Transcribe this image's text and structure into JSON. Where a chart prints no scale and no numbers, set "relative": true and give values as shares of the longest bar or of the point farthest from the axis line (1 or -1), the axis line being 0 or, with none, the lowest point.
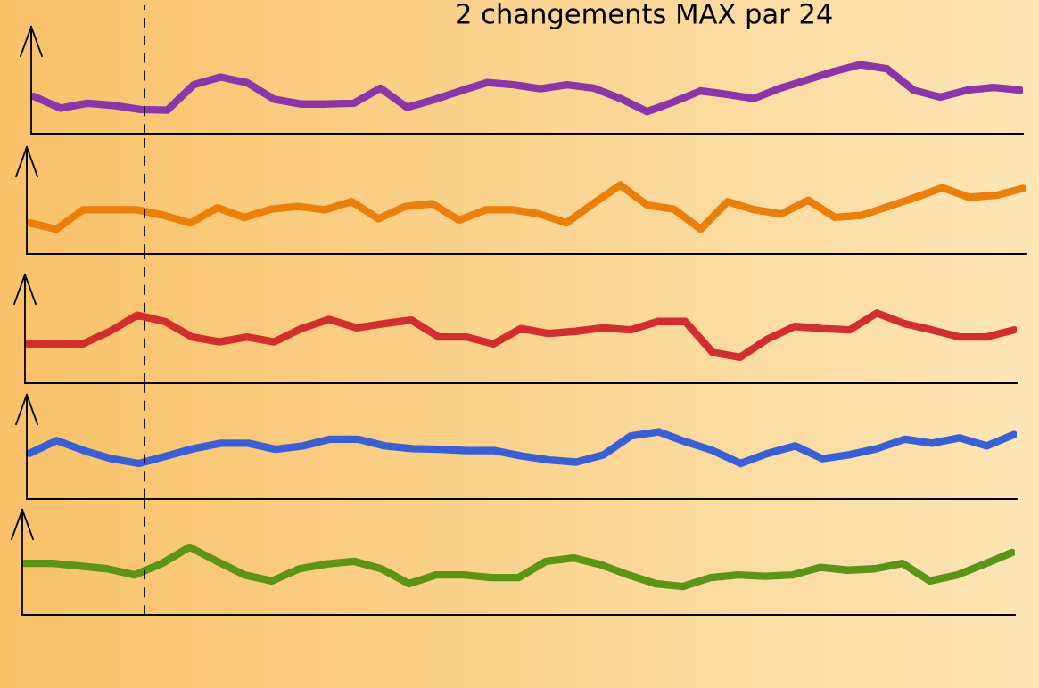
{
  "chart_data": [
    {
      "type": "line",
      "title": "2 changements MAX par 24",
      "relative": true,
      "grid": false,
      "marker": "none",
      "line_style": "solid",
      "categories": [
        null,
        null,
        null,
        null,
        null,
        null,
        null,
        null,
        null,
        null,
        null,
        null,
        null,
        null,
        null,
        null,
        null,
        null,
        null,
        null,
        null,
        null,
        null,
        null,
        null,
        null,
        null,
        null,
        null,
        null,
        null,
        null,
        null,
        null,
        null,
        null,
        null,
        null
      ],
      "series": [
        {
          "color": "#8a35a8",
          "values": [
            0.54,
            0.37,
            0.44,
            0.41,
            0.35,
            0.34,
            0.71,
            0.82,
            0.74,
            0.5,
            0.43,
            0.43,
            0.44,
            0.66,
            0.38,
            0.49,
            0.62,
            0.74,
            0.71,
            0.65,
            0.71,
            0.66,
            0.51,
            0.32,
            0.46,
            0.62,
            0.57,
            0.51,
            0.66,
            0.78,
            0.9,
            1,
            0.94,
            0.63,
            0.53,
            0.63,
            0.67,
            0.63
          ]
        }
      ]
    },
    {
      "type": "line",
      "relative": true,
      "grid": false,
      "marker": "none",
      "line_style": "solid",
      "categories": [
        null,
        null,
        null,
        null,
        null,
        null,
        null,
        null,
        null,
        null,
        null,
        null,
        null,
        null,
        null,
        null,
        null,
        null,
        null,
        null,
        null,
        null,
        null,
        null,
        null,
        null,
        null,
        null,
        null,
        null,
        null,
        null,
        null,
        null,
        null,
        null,
        null,
        null
      ],
      "series": [
        {
          "color": "#ea7f0c",
          "values": [
            0.45,
            0.36,
            0.64,
            0.64,
            0.64,
            0.56,
            0.45,
            0.67,
            0.53,
            0.65,
            0.69,
            0.64,
            0.76,
            0.51,
            0.69,
            0.73,
            0.49,
            0.64,
            0.64,
            0.58,
            0.45,
            0.73,
            1,
            0.71,
            0.65,
            0.36,
            0.76,
            0.64,
            0.58,
            0.78,
            0.53,
            0.56,
            0.69,
            0.82,
            0.96,
            0.82,
            0.85,
            0.95
          ]
        }
      ]
    },
    {
      "type": "line",
      "relative": true,
      "grid": false,
      "marker": "none",
      "line_style": "solid",
      "categories": [
        null,
        null,
        null,
        null,
        null,
        null,
        null,
        null,
        null,
        null,
        null,
        null,
        null,
        null,
        null,
        null,
        null,
        null,
        null,
        null,
        null,
        null,
        null,
        null,
        null,
        null,
        null,
        null,
        null,
        null,
        null,
        null,
        null,
        null,
        null,
        null,
        null
      ],
      "series": [
        {
          "color": "#d12f2f",
          "values": [
            0.56,
            0.56,
            0.56,
            0.74,
            0.97,
            0.88,
            0.66,
            0.59,
            0.66,
            0.59,
            0.78,
            0.91,
            0.79,
            0.85,
            0.9,
            0.66,
            0.66,
            0.56,
            0.78,
            0.71,
            0.74,
            0.79,
            0.76,
            0.88,
            0.88,
            0.44,
            0.37,
            0.63,
            0.81,
            0.78,
            0.76,
            1,
            0.85,
            0.76,
            0.66,
            0.66,
            0.76
          ]
        }
      ]
    },
    {
      "type": "line",
      "relative": true,
      "grid": false,
      "marker": "none",
      "line_style": "solid",
      "categories": [
        null,
        null,
        null,
        null,
        null,
        null,
        null,
        null,
        null,
        null,
        null,
        null,
        null,
        null,
        null,
        null,
        null,
        null,
        null,
        null,
        null,
        null,
        null,
        null,
        null,
        null,
        null,
        null,
        null,
        null,
        null,
        null,
        null,
        null,
        null,
        null,
        null
      ],
      "series": [
        {
          "color": "#3a5fd4",
          "values": [
            0.68,
            0.87,
            0.72,
            0.6,
            0.53,
            0.64,
            0.75,
            0.83,
            0.83,
            0.74,
            0.79,
            0.89,
            0.89,
            0.79,
            0.75,
            0.74,
            0.72,
            0.72,
            0.64,
            0.58,
            0.55,
            0.66,
            0.94,
            1,
            0.85,
            0.72,
            0.53,
            0.68,
            0.79,
            0.6,
            0.66,
            0.75,
            0.89,
            0.83,
            0.91,
            0.79,
            0.96
          ]
        }
      ]
    },
    {
      "type": "line",
      "relative": true,
      "grid": false,
      "marker": "none",
      "line_style": "solid",
      "categories": [
        null,
        null,
        null,
        null,
        null,
        null,
        null,
        null,
        null,
        null,
        null,
        null,
        null,
        null,
        null,
        null,
        null,
        null,
        null,
        null,
        null,
        null,
        null,
        null,
        null,
        null,
        null,
        null,
        null,
        null,
        null,
        null,
        null,
        null,
        null,
        null,
        null
      ],
      "series": [
        {
          "color": "#5b9416",
          "values": [
            0.76,
            0.76,
            0.72,
            0.68,
            0.59,
            0.76,
            1,
            0.79,
            0.59,
            0.5,
            0.68,
            0.75,
            0.79,
            0.68,
            0.46,
            0.59,
            0.59,
            0.55,
            0.55,
            0.79,
            0.84,
            0.74,
            0.59,
            0.46,
            0.42,
            0.55,
            0.59,
            0.57,
            0.59,
            0.7,
            0.66,
            0.68,
            0.76,
            0.5,
            0.59,
            0.75,
            0.92
          ]
        }
      ]
    }
  ]
}
